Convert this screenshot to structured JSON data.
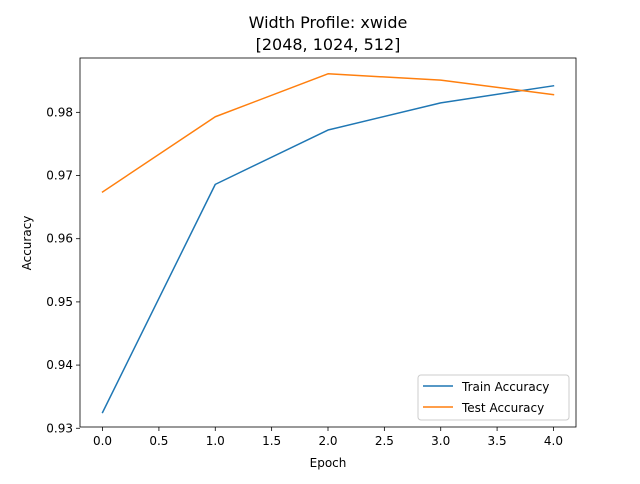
{
  "chart_data": {
    "type": "line",
    "title_line1": "Width Profile: xwide",
    "title_line2": "[2048, 1024, 512]",
    "xlabel": "Epoch",
    "ylabel": "Accuracy",
    "x": [
      0,
      1,
      2,
      3,
      4
    ],
    "xlim": [
      -0.2,
      4.2
    ],
    "ylim": [
      0.9302,
      0.9886
    ],
    "xticks": [
      "0.0",
      "0.5",
      "1.0",
      "1.5",
      "2.0",
      "2.5",
      "3.0",
      "3.5",
      "4.0"
    ],
    "xtick_values": [
      0,
      0.5,
      1,
      1.5,
      2,
      2.5,
      3,
      3.5,
      4
    ],
    "yticks": [
      "0.93",
      "0.94",
      "0.95",
      "0.96",
      "0.97",
      "0.98"
    ],
    "ytick_values": [
      0.93,
      0.94,
      0.95,
      0.96,
      0.97,
      0.98
    ],
    "grid": false,
    "legend_position": "lower-right",
    "series": [
      {
        "name": "Train Accuracy",
        "values": [
          0.9325,
          0.9686,
          0.9772,
          0.9815,
          0.9842
        ],
        "color": "#1f77b4"
      },
      {
        "name": "Test Accuracy",
        "values": [
          0.9674,
          0.9793,
          0.9861,
          0.9851,
          0.9828
        ],
        "color": "#ff7f0e"
      }
    ]
  }
}
